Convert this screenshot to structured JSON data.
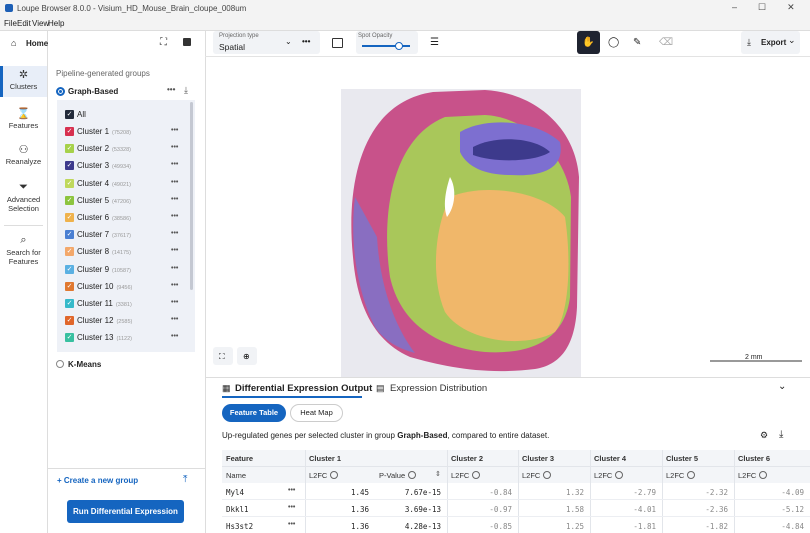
{
  "window": {
    "title": "Loupe Browser 8.0.0 - Visium_HD_Mouse_Brain_cloupe_008um"
  },
  "menu": [
    "File",
    "Edit",
    "View",
    "Help"
  ],
  "rail": {
    "home": "Home",
    "items": [
      "Clusters",
      "Features",
      "Reanalyze",
      "Advanced Selection",
      "Search for Features"
    ]
  },
  "toolbar": {
    "projection_label": "Projection type",
    "projection_value": "Spatial",
    "opacity_label": "Spot Opacity",
    "export": "Export"
  },
  "groups": {
    "heading": "Pipeline-generated groups",
    "selected_group": "Graph-Based",
    "all": "All",
    "clusters": [
      {
        "name": "Cluster 1",
        "count": "(75208)",
        "color": "#d7304f"
      },
      {
        "name": "Cluster 2",
        "count": "(53328)",
        "color": "#a6d14a"
      },
      {
        "name": "Cluster 3",
        "count": "(49934)",
        "color": "#3d3a8c"
      },
      {
        "name": "Cluster 4",
        "count": "(49021)",
        "color": "#bfd85c"
      },
      {
        "name": "Cluster 5",
        "count": "(47206)",
        "color": "#8cc43e"
      },
      {
        "name": "Cluster 6",
        "count": "(38586)",
        "color": "#efb24c"
      },
      {
        "name": "Cluster 7",
        "count": "(37617)",
        "color": "#4a7fd2"
      },
      {
        "name": "Cluster 8",
        "count": "(14175)",
        "color": "#f3a86b"
      },
      {
        "name": "Cluster 9",
        "count": "(10587)",
        "color": "#5ab0e2"
      },
      {
        "name": "Cluster 10",
        "count": "(9456)",
        "color": "#e07830"
      },
      {
        "name": "Cluster 11",
        "count": "(3381)",
        "color": "#36b9c9"
      },
      {
        "name": "Cluster 12",
        "count": "(2585)",
        "color": "#e0662a"
      },
      {
        "name": "Cluster 13",
        "count": "(1122)",
        "color": "#38c0a0"
      }
    ],
    "other_group": "K-Means",
    "create": "+ Create a new group",
    "run": "Run Differential Expression"
  },
  "viewer": {
    "scale": "2 mm"
  },
  "de": {
    "tabs": [
      "Differential Expression Output",
      "Expression Distribution"
    ],
    "views": [
      "Feature Table",
      "Heat Map"
    ],
    "caption": [
      "Up-regulated genes per selected cluster in group ",
      "Graph-Based",
      ", compared to entire dataset."
    ],
    "groups": [
      "Feature",
      "Cluster 1",
      "Cluster 2",
      "Cluster 3",
      "Cluster 4",
      "Cluster 5",
      "Cluster 6"
    ],
    "sub": [
      "Name",
      "L2FC",
      "P-Value",
      "L2FC",
      "L2FC",
      "L2FC",
      "L2FC",
      "L2FC"
    ],
    "rows": [
      [
        "Myl4",
        "1.45",
        "7.67e-15",
        "-0.84",
        "1.32",
        "-2.79",
        "-2.32",
        "-4.09"
      ],
      [
        "Dkkl1",
        "1.36",
        "3.69e-13",
        "-0.97",
        "1.58",
        "-4.01",
        "-2.36",
        "-5.12"
      ],
      [
        "Hs3st2",
        "1.36",
        "4.28e-13",
        "-0.85",
        "1.25",
        "-1.81",
        "-1.82",
        "-4.84"
      ]
    ]
  }
}
